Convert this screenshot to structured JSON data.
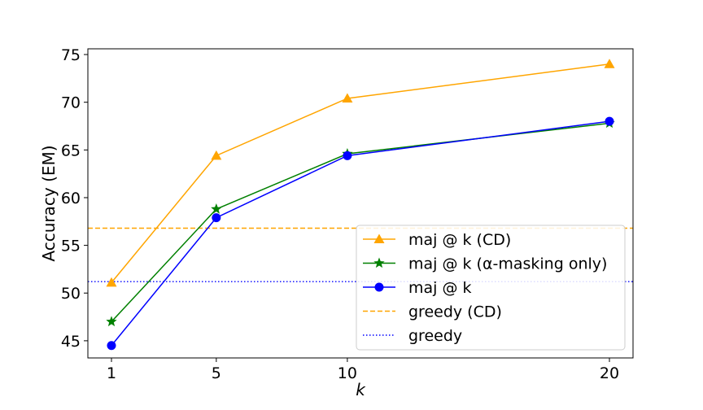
{
  "chart_data": {
    "type": "line",
    "title": "",
    "xlabel": "k",
    "ylabel": "Accuracy (EM)",
    "x": [
      1,
      5,
      10,
      20
    ],
    "x_ticks": [
      "1",
      "5",
      "10",
      "20"
    ],
    "y_ticks": [
      "45",
      "50",
      "55",
      "60",
      "65",
      "70",
      "75"
    ],
    "xlim": [
      0.1,
      20.9
    ],
    "ylim": [
      43.2,
      75.6
    ],
    "grid": false,
    "legend_placement": "lower-right",
    "series": [
      {
        "name": "maj @ k (CD)",
        "values": [
          51.1,
          64.4,
          70.4,
          74.0
        ],
        "color": "#ffa500",
        "marker": "triangle"
      },
      {
        "name": "maj @ k (α-masking only)",
        "values": [
          47.0,
          58.8,
          64.6,
          67.8
        ],
        "color": "#008000",
        "marker": "star"
      },
      {
        "name": "maj @ k",
        "values": [
          44.5,
          57.9,
          64.4,
          68.0
        ],
        "color": "#0000ff",
        "marker": "circle"
      }
    ],
    "reference_lines": [
      {
        "name": "greedy (CD)",
        "value": 56.8,
        "color": "#ffa500",
        "style": "dashed"
      },
      {
        "name": "greedy",
        "value": 51.2,
        "color": "#0000ff",
        "style": "dotted"
      }
    ]
  }
}
